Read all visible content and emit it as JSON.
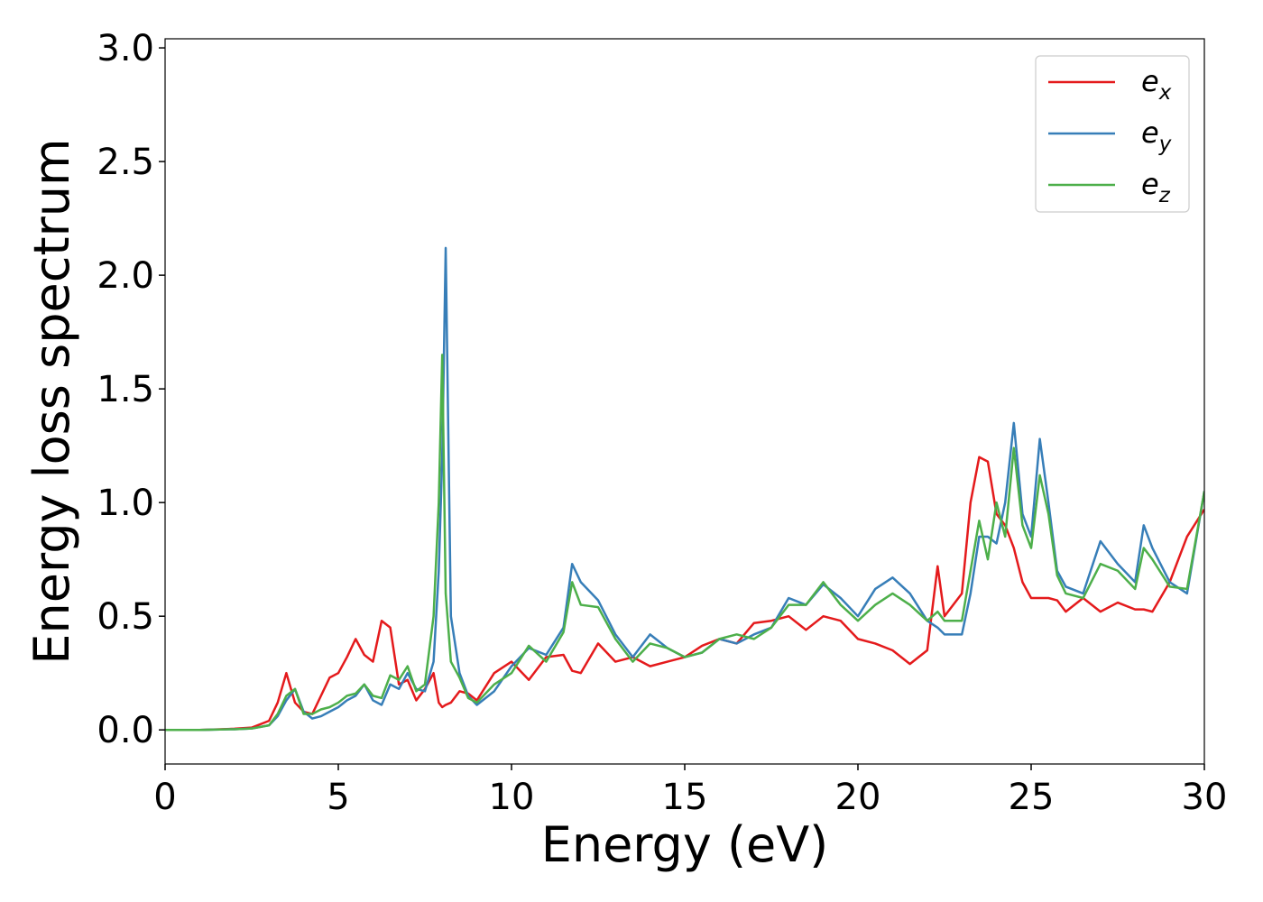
{
  "chart_data": {
    "type": "line",
    "x_label": "Energy (eV)",
    "y_label": "Energy loss spectrum",
    "xlim": [
      0,
      30
    ],
    "ylim": [
      -0.15,
      3.04
    ],
    "xticks": [
      0,
      5,
      10,
      15,
      20,
      25,
      30
    ],
    "yticks": [
      {
        "value": 0,
        "label": "0.0"
      },
      0.5,
      {
        "value": 1,
        "label": "1.0"
      },
      1.5,
      {
        "value": 2,
        "label": "2.0"
      },
      2.5,
      {
        "value": 3,
        "label": "3.0"
      }
    ],
    "legend": "upper right",
    "x": [
      0,
      1,
      2,
      2.5,
      3,
      3.25,
      3.5,
      3.75,
      4,
      4.25,
      4.5,
      4.75,
      5,
      5.25,
      5.5,
      5.75,
      6,
      6.25,
      6.5,
      6.75,
      7,
      7.25,
      7.5,
      7.75,
      7.9,
      8.0,
      8.1,
      8.25,
      8.5,
      8.75,
      9,
      9.5,
      10,
      10.5,
      11,
      11.5,
      11.75,
      12,
      12.5,
      13,
      13.5,
      14,
      14.5,
      15,
      15.5,
      16,
      16.5,
      17,
      17.5,
      18,
      18.5,
      19,
      19.5,
      20,
      20.5,
      21,
      21.5,
      22,
      22.3,
      22.5,
      23,
      23.25,
      23.5,
      23.75,
      24,
      24.25,
      24.5,
      24.75,
      25,
      25.25,
      25.5,
      25.75,
      26,
      26.5,
      27,
      27.5,
      28,
      28.25,
      28.5,
      29,
      29.5,
      30
    ],
    "series": [
      {
        "name": "e",
        "name_sub": "x",
        "color": "#e41a1c",
        "values": [
          0,
          0,
          0.005,
          0.01,
          0.04,
          0.12,
          0.25,
          0.12,
          0.08,
          0.07,
          0.15,
          0.23,
          0.25,
          0.32,
          0.4,
          0.33,
          0.3,
          0.48,
          0.45,
          0.2,
          0.22,
          0.13,
          0.18,
          0.25,
          0.12,
          0.1,
          0.11,
          0.12,
          0.17,
          0.16,
          0.13,
          0.25,
          0.3,
          0.22,
          0.32,
          0.33,
          0.26,
          0.25,
          0.38,
          0.3,
          0.32,
          0.28,
          0.3,
          0.32,
          0.37,
          0.4,
          0.38,
          0.47,
          0.48,
          0.5,
          0.44,
          0.5,
          0.48,
          0.4,
          0.38,
          0.35,
          0.29,
          0.35,
          0.72,
          0.5,
          0.6,
          1.0,
          1.2,
          1.18,
          0.95,
          0.9,
          0.8,
          0.65,
          0.58,
          0.58,
          0.58,
          0.57,
          0.52,
          0.58,
          0.52,
          0.56,
          0.53,
          0.53,
          0.52,
          0.65,
          0.85,
          0.97
        ]
      },
      {
        "name": "e",
        "name_sub": "y",
        "color": "#377eb8",
        "values": [
          0,
          0,
          0.003,
          0.006,
          0.02,
          0.06,
          0.13,
          0.18,
          0.08,
          0.05,
          0.06,
          0.08,
          0.1,
          0.13,
          0.15,
          0.2,
          0.13,
          0.11,
          0.2,
          0.18,
          0.25,
          0.18,
          0.17,
          0.3,
          0.7,
          1.2,
          2.12,
          0.5,
          0.25,
          0.15,
          0.11,
          0.17,
          0.28,
          0.36,
          0.33,
          0.45,
          0.73,
          0.65,
          0.57,
          0.42,
          0.32,
          0.42,
          0.36,
          0.32,
          0.34,
          0.4,
          0.38,
          0.42,
          0.45,
          0.58,
          0.55,
          0.64,
          0.58,
          0.5,
          0.62,
          0.67,
          0.6,
          0.48,
          0.45,
          0.42,
          0.42,
          0.6,
          0.85,
          0.85,
          0.82,
          1.0,
          1.35,
          0.95,
          0.85,
          1.28,
          1.0,
          0.7,
          0.63,
          0.6,
          0.83,
          0.73,
          0.65,
          0.9,
          0.8,
          0.65,
          0.6,
          1.05
        ]
      },
      {
        "name": "e",
        "name_sub": "z",
        "color": "#4daf4a",
        "values": [
          0,
          0,
          0.003,
          0.006,
          0.02,
          0.07,
          0.15,
          0.18,
          0.07,
          0.07,
          0.09,
          0.1,
          0.12,
          0.15,
          0.16,
          0.2,
          0.15,
          0.14,
          0.24,
          0.22,
          0.28,
          0.17,
          0.2,
          0.5,
          1.0,
          1.65,
          0.6,
          0.3,
          0.23,
          0.14,
          0.12,
          0.2,
          0.25,
          0.37,
          0.3,
          0.43,
          0.65,
          0.55,
          0.54,
          0.4,
          0.3,
          0.38,
          0.36,
          0.32,
          0.34,
          0.4,
          0.42,
          0.4,
          0.45,
          0.55,
          0.55,
          0.65,
          0.55,
          0.48,
          0.55,
          0.6,
          0.55,
          0.48,
          0.52,
          0.48,
          0.48,
          0.7,
          0.92,
          0.75,
          1.0,
          0.85,
          1.24,
          0.9,
          0.8,
          1.12,
          0.95,
          0.68,
          0.6,
          0.58,
          0.73,
          0.7,
          0.62,
          0.8,
          0.75,
          0.63,
          0.62,
          1.05
        ]
      }
    ]
  }
}
